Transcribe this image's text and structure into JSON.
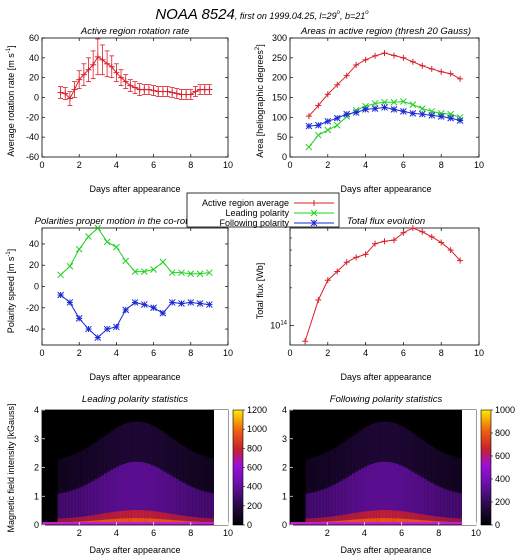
{
  "header": {
    "main": "NOAA 8524",
    "sub": ", first on 1999.04.25, l=29",
    "sub_deg1": "o",
    "sub_mid": ", b=21",
    "sub_deg2": "o"
  },
  "legend": {
    "entries": [
      {
        "label": "Active region average",
        "color": "#d9202a",
        "marker": "+"
      },
      {
        "label": "Leading polarity",
        "color": "#1fd21f",
        "marker": "x"
      },
      {
        "label": "Following polarity",
        "color": "#1a2ad6",
        "marker": "*"
      }
    ]
  },
  "chart_data": [
    {
      "id": "rotation",
      "type": "line",
      "title": "Active region rotation rate",
      "xlabel": "Days after appearance",
      "ylabel": "Average rotation rate [m s",
      "ylabel_sup": "-1",
      "ylabel_end": "]",
      "xlim": [
        0,
        10
      ],
      "ylim": [
        -60,
        60
      ],
      "xticks": [
        "0",
        "2",
        "4",
        "6",
        "8",
        "10"
      ],
      "yticks": [
        "-60",
        "-40",
        "-20",
        "0",
        "20",
        "40",
        "60"
      ],
      "series": [
        {
          "color": "#d9202a",
          "marker": "+",
          "x": [
            1.0,
            1.25,
            1.5,
            1.75,
            2.0,
            2.25,
            2.5,
            2.75,
            3.0,
            3.25,
            3.5,
            3.75,
            4.0,
            4.25,
            4.5,
            4.75,
            5.0,
            5.25,
            5.5,
            5.75,
            6.0,
            6.25,
            6.5,
            6.75,
            7.0,
            7.25,
            7.5,
            7.75,
            8.0,
            8.25,
            8.5,
            8.75,
            9.0
          ],
          "y": [
            5,
            4,
            -1,
            8,
            18,
            23,
            28,
            33,
            41,
            38,
            34,
            31,
            25,
            20,
            16,
            12,
            10,
            8,
            8,
            8,
            7,
            6,
            6,
            6,
            5,
            4,
            3,
            3,
            3,
            6,
            8,
            8,
            8
          ],
          "err": [
            6,
            6,
            7,
            8,
            9,
            11,
            12,
            14,
            18,
            15,
            13,
            11,
            9,
            8,
            7,
            6,
            6,
            6,
            5,
            5,
            5,
            5,
            5,
            5,
            5,
            5,
            5,
            5,
            5,
            5,
            5,
            5,
            5
          ]
        }
      ]
    },
    {
      "id": "areas",
      "type": "line",
      "title": "Areas in active region (thresh 20 Gauss)",
      "xlabel": "Days after appearance",
      "ylabel": "Area [heliographic degrees",
      "ylabel_sup": "2",
      "ylabel_end": "]",
      "xlim": [
        0,
        10
      ],
      "ylim": [
        0,
        300
      ],
      "xticks": [
        "0",
        "2",
        "4",
        "6",
        "8",
        "10"
      ],
      "yticks": [
        "0",
        "50",
        "100",
        "150",
        "200",
        "250",
        "300"
      ],
      "series": [
        {
          "name": "Active region average",
          "color": "#d9202a",
          "marker": "+",
          "x": [
            1,
            1.5,
            2,
            2.5,
            3,
            3.5,
            4,
            4.5,
            5,
            5.5,
            6,
            6.5,
            7,
            7.5,
            8,
            8.5,
            9
          ],
          "y": [
            103,
            130,
            158,
            182,
            205,
            232,
            245,
            255,
            262,
            256,
            250,
            240,
            230,
            222,
            215,
            210,
            197
          ]
        },
        {
          "name": "Leading polarity",
          "color": "#1fd21f",
          "marker": "x",
          "x": [
            1,
            1.5,
            2,
            2.5,
            3,
            3.5,
            4,
            4.5,
            5,
            5.5,
            6,
            6.5,
            7,
            7.5,
            8,
            8.5,
            9
          ],
          "y": [
            25,
            55,
            68,
            80,
            102,
            118,
            128,
            135,
            138,
            138,
            140,
            132,
            122,
            115,
            110,
            108,
            100
          ]
        },
        {
          "name": "Following polarity",
          "color": "#1a2ad6",
          "marker": "*",
          "x": [
            1,
            1.5,
            2,
            2.5,
            3,
            3.5,
            4,
            4.5,
            5,
            5.5,
            6,
            6.5,
            7,
            7.5,
            8,
            8.5,
            9
          ],
          "y": [
            78,
            80,
            90,
            98,
            108,
            112,
            120,
            122,
            125,
            120,
            115,
            110,
            108,
            105,
            102,
            98,
            92
          ]
        }
      ]
    },
    {
      "id": "motion",
      "type": "line",
      "title": "Polarities proper motion in the co-rotating frame",
      "xlabel": "Days after appearance",
      "ylabel": "Polarity speed [m s",
      "ylabel_sup": "-1",
      "ylabel_end": "]",
      "xlim": [
        0,
        10
      ],
      "ylim": [
        -55,
        55
      ],
      "xticks": [
        "0",
        "2",
        "4",
        "6",
        "8",
        "10"
      ],
      "yticks": [
        "-40",
        "-20",
        "0",
        "20",
        "40"
      ],
      "series": [
        {
          "name": "Leading polarity",
          "color": "#1fd21f",
          "marker": "x",
          "x": [
            1,
            1.5,
            2,
            2.5,
            3,
            3.5,
            4,
            4.5,
            5,
            5.5,
            6,
            6.5,
            7,
            7.5,
            8,
            8.5,
            9
          ],
          "y": [
            11,
            19,
            35,
            47,
            55,
            42,
            37,
            24,
            14,
            14,
            16,
            23,
            13,
            13,
            12,
            12,
            13
          ]
        },
        {
          "name": "Following polarity",
          "color": "#1a2ad6",
          "marker": "*",
          "x": [
            1,
            1.5,
            2,
            2.5,
            3,
            3.5,
            4,
            4.5,
            5,
            5.5,
            6,
            6.5,
            7,
            7.5,
            8,
            8.5,
            9
          ],
          "y": [
            -8,
            -15,
            -30,
            -40,
            -48,
            -40,
            -38,
            -22,
            -15,
            -17,
            -20,
            -25,
            -15,
            -16,
            -15,
            -16,
            -17
          ]
        }
      ]
    },
    {
      "id": "flux",
      "type": "line",
      "title": "Total flux evolution",
      "xlabel": "Days after appearance",
      "ylabel": "Total flux [Wb]",
      "yscale": "log",
      "xlim": [
        0,
        10
      ],
      "ylim": [
        70000000000000.0,
        600000000000000.0
      ],
      "xticks": [
        "0",
        "2",
        "4",
        "6",
        "8",
        "10"
      ],
      "ytick_label": "10",
      "ytick_sup": "14",
      "series": [
        {
          "color": "#d9202a",
          "marker": "+",
          "x": [
            0.8,
            1.5,
            2,
            2.5,
            3,
            3.5,
            4,
            4.5,
            5,
            5.5,
            6,
            6.5,
            7,
            7.5,
            8,
            8.5,
            9
          ],
          "y": [
            75000000000000.0,
            160000000000000.0,
            230000000000000.0,
            270000000000000.0,
            320000000000000.0,
            350000000000000.0,
            370000000000000.0,
            450000000000000.0,
            470000000000000.0,
            480000000000000.0,
            550000000000000.0,
            600000000000000.0,
            560000000000000.0,
            510000000000000.0,
            460000000000000.0,
            400000000000000.0,
            330000000000000.0
          ]
        }
      ]
    },
    {
      "id": "leading_stats",
      "type": "heatmap",
      "title": "Leading polarity statistics",
      "xlabel": "Days after appearance",
      "ylabel": "Magnetic field intensity [kGauss]",
      "xlim": [
        0,
        10
      ],
      "ylim": [
        0,
        4
      ],
      "xticks": [
        "2",
        "4",
        "6",
        "8",
        "10"
      ],
      "yticks": [
        "0",
        "1",
        "2",
        "3",
        "4"
      ],
      "colorbar_ticks": [
        "0",
        "200",
        "400",
        "600",
        "800",
        "1000",
        "1200"
      ],
      "colorbar_max": 1200
    },
    {
      "id": "following_stats",
      "type": "heatmap",
      "title": "Following polarity statistics",
      "xlabel": "Days after appearance",
      "ylabel": "",
      "xlim": [
        0,
        10
      ],
      "ylim": [
        0,
        4
      ],
      "xticks": [
        "2",
        "4",
        "6",
        "8",
        "10"
      ],
      "yticks": [
        "0",
        "1",
        "2",
        "3",
        "4"
      ],
      "colorbar_ticks": [
        "0",
        "200",
        "400",
        "600",
        "800",
        "1000"
      ],
      "colorbar_max": 1000
    }
  ]
}
